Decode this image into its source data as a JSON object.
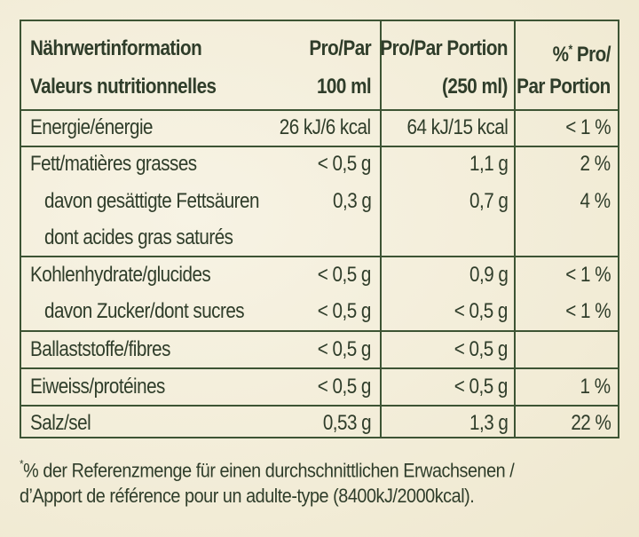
{
  "header": {
    "col1_line1": "Nährwertinformation",
    "col1_line2": "Valeurs nutritionnelles",
    "col2_line1": "Pro/Par",
    "col2_line2": "100 ml",
    "col3_line1": "Pro/Par Portion",
    "col3_line2": "(250 ml)",
    "col4_line1_pct": "%",
    "col4_line1_star": "*",
    "col4_line1_rest": " Pro/",
    "col4_line2": "Par Portion"
  },
  "rows": [
    {
      "label": "Energie/énergie",
      "per100": "26 kJ/6 kcal",
      "perPortion": "64 kJ/15 kcal",
      "pct": "< 1 %"
    },
    {
      "label": "Fett/matières grasses",
      "per100": "< 0,5 g",
      "perPortion": "1,1 g",
      "pct": "2 %"
    },
    {
      "label": "davon gesättigte Fettsäuren",
      "per100": "0,3 g",
      "perPortion": "0,7 g",
      "pct": "4 %"
    },
    {
      "label": "dont acides gras saturés",
      "per100": "",
      "perPortion": "",
      "pct": ""
    },
    {
      "label": "Kohlenhydrate/glucides",
      "per100": "< 0,5 g",
      "perPortion": "0,9 g",
      "pct": "< 1 %"
    },
    {
      "label": "davon Zucker/dont sucres",
      "per100": "< 0,5 g",
      "perPortion": "< 0,5 g",
      "pct": "< 1 %"
    },
    {
      "label": "Ballaststoffe/fibres",
      "per100": "< 0,5 g",
      "perPortion": "< 0,5 g",
      "pct": ""
    },
    {
      "label": "Eiweiss/protéines",
      "per100": "< 0,5 g",
      "perPortion": "< 0,5 g",
      "pct": "1 %"
    },
    {
      "label": "Salz/sel",
      "per100": "0,53 g",
      "perPortion": "1,3 g",
      "pct": "22 %"
    }
  ],
  "footnote": {
    "star": "*",
    "line1": "% der Referenzmenge für einen durchschnittlichen Erwachsenen /",
    "line2": "d’Apport de référence pour un adulte-type (8400kJ/2000kcal)."
  }
}
